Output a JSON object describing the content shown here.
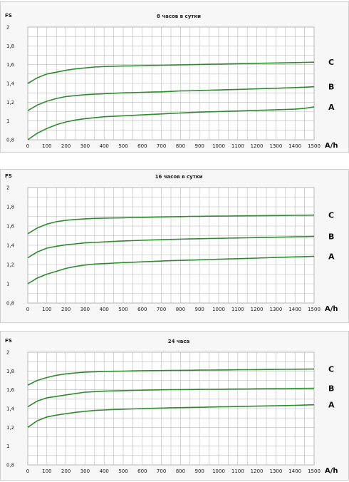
{
  "chart_data": [
    {
      "type": "line",
      "title": "8 часов в сутки",
      "ylabel": "FS",
      "xlabel": "A/h",
      "ylim": [
        0.8,
        2
      ],
      "yticks": [
        "0,8",
        "1",
        "1,2",
        "1,4",
        "1,6",
        "1,8",
        "2"
      ],
      "xticks": [
        "0",
        "100",
        "200",
        "300",
        "400",
        "500",
        "600",
        "700",
        "800",
        "900",
        "1000",
        "1100",
        "1200",
        "1300",
        "1400",
        "1500"
      ],
      "x": [
        0,
        50,
        100,
        150,
        200,
        250,
        300,
        350,
        400,
        450,
        500,
        550,
        600,
        650,
        700,
        750,
        800,
        850,
        900,
        950,
        1000,
        1050,
        1100,
        1150,
        1200,
        1250,
        1300,
        1350,
        1400,
        1450,
        1500
      ],
      "series": [
        {
          "name": "C",
          "values": [
            1.4,
            1.46,
            1.5,
            1.52,
            1.54,
            1.555,
            1.565,
            1.575,
            1.58,
            1.582,
            1.585,
            1.587,
            1.59,
            1.592,
            1.594,
            1.596,
            1.598,
            1.6,
            1.602,
            1.604,
            1.606,
            1.608,
            1.61,
            1.612,
            1.614,
            1.616,
            1.618,
            1.62,
            1.622,
            1.624,
            1.626
          ]
        },
        {
          "name": "B",
          "values": [
            1.11,
            1.17,
            1.21,
            1.24,
            1.26,
            1.27,
            1.28,
            1.285,
            1.29,
            1.295,
            1.3,
            1.302,
            1.305,
            1.308,
            1.31,
            1.315,
            1.32,
            1.322,
            1.325,
            1.328,
            1.33,
            1.333,
            1.336,
            1.339,
            1.342,
            1.345,
            1.348,
            1.352,
            1.356,
            1.36,
            1.364
          ]
        },
        {
          "name": "A",
          "values": [
            0.8,
            0.87,
            0.92,
            0.96,
            0.99,
            1.01,
            1.025,
            1.035,
            1.045,
            1.05,
            1.055,
            1.06,
            1.065,
            1.07,
            1.075,
            1.08,
            1.085,
            1.09,
            1.095,
            1.098,
            1.1,
            1.103,
            1.106,
            1.11,
            1.113,
            1.116,
            1.12,
            1.123,
            1.126,
            1.135,
            1.15
          ]
        }
      ],
      "grid": true,
      "colors": {
        "line": "#2e8b2e"
      }
    },
    {
      "type": "line",
      "title": "16 часов в сутки",
      "ylabel": "FS",
      "xlabel": "A/h",
      "ylim": [
        0.8,
        2
      ],
      "yticks": [
        "0,8",
        "1",
        "1,2",
        "1,4",
        "1,6",
        "1,8",
        "2"
      ],
      "xticks": [
        "0",
        "100",
        "200",
        "300",
        "400",
        "500",
        "600",
        "700",
        "800",
        "900",
        "1000",
        "1100",
        "1200",
        "1300",
        "1400",
        "1500"
      ],
      "x": [
        0,
        50,
        100,
        150,
        200,
        250,
        300,
        350,
        400,
        450,
        500,
        550,
        600,
        650,
        700,
        750,
        800,
        850,
        900,
        950,
        1000,
        1050,
        1100,
        1150,
        1200,
        1250,
        1300,
        1350,
        1400,
        1450,
        1500
      ],
      "series": [
        {
          "name": "C",
          "values": [
            1.52,
            1.58,
            1.62,
            1.645,
            1.66,
            1.668,
            1.675,
            1.679,
            1.682,
            1.684,
            1.686,
            1.688,
            1.69,
            1.692,
            1.694,
            1.696,
            1.698,
            1.7,
            1.701,
            1.702,
            1.703,
            1.704,
            1.705,
            1.706,
            1.707,
            1.708,
            1.709,
            1.71,
            1.711,
            1.712,
            1.713
          ]
        },
        {
          "name": "B",
          "values": [
            1.27,
            1.33,
            1.37,
            1.39,
            1.405,
            1.415,
            1.425,
            1.43,
            1.435,
            1.44,
            1.445,
            1.448,
            1.452,
            1.455,
            1.458,
            1.461,
            1.464,
            1.466,
            1.468,
            1.47,
            1.472,
            1.474,
            1.476,
            1.478,
            1.48,
            1.482,
            1.484,
            1.486,
            1.488,
            1.49,
            1.492
          ]
        },
        {
          "name": "A",
          "values": [
            1.0,
            1.06,
            1.1,
            1.13,
            1.16,
            1.18,
            1.195,
            1.205,
            1.21,
            1.215,
            1.22,
            1.224,
            1.228,
            1.232,
            1.236,
            1.24,
            1.243,
            1.246,
            1.249,
            1.252,
            1.255,
            1.258,
            1.261,
            1.264,
            1.267,
            1.27,
            1.273,
            1.276,
            1.279,
            1.282,
            1.285
          ]
        }
      ],
      "grid": true,
      "colors": {
        "line": "#2e8b2e"
      }
    },
    {
      "type": "line",
      "title": "24 часа",
      "ylabel": "FS",
      "xlabel": "A/h",
      "ylim": [
        0.8,
        2
      ],
      "yticks": [
        "0,8",
        "1",
        "1,2",
        "1,4",
        "1,6",
        "1,8",
        "2"
      ],
      "xticks": [
        "0",
        "100",
        "200",
        "300",
        "400",
        "500",
        "600",
        "700",
        "800",
        "900",
        "1000",
        "1100",
        "1200",
        "1300",
        "1400",
        "1500"
      ],
      "x": [
        0,
        50,
        100,
        150,
        200,
        250,
        300,
        350,
        400,
        450,
        500,
        550,
        600,
        650,
        700,
        750,
        800,
        850,
        900,
        950,
        1000,
        1050,
        1100,
        1150,
        1200,
        1250,
        1300,
        1350,
        1400,
        1450,
        1500
      ],
      "series": [
        {
          "name": "C",
          "values": [
            1.65,
            1.7,
            1.73,
            1.755,
            1.77,
            1.78,
            1.788,
            1.792,
            1.795,
            1.797,
            1.799,
            1.801,
            1.803,
            1.804,
            1.805,
            1.806,
            1.807,
            1.808,
            1.809,
            1.81,
            1.811,
            1.812,
            1.813,
            1.814,
            1.815,
            1.816,
            1.817,
            1.818,
            1.819,
            1.82,
            1.821
          ]
        },
        {
          "name": "B",
          "values": [
            1.42,
            1.48,
            1.515,
            1.53,
            1.545,
            1.56,
            1.575,
            1.58,
            1.585,
            1.588,
            1.591,
            1.594,
            1.596,
            1.598,
            1.6,
            1.601,
            1.602,
            1.603,
            1.604,
            1.605,
            1.606,
            1.607,
            1.608,
            1.609,
            1.61,
            1.611,
            1.612,
            1.613,
            1.614,
            1.615,
            1.616
          ]
        },
        {
          "name": "A",
          "values": [
            1.2,
            1.27,
            1.31,
            1.33,
            1.345,
            1.36,
            1.37,
            1.38,
            1.385,
            1.39,
            1.393,
            1.396,
            1.399,
            1.402,
            1.405,
            1.408,
            1.41,
            1.412,
            1.414,
            1.416,
            1.418,
            1.42,
            1.422,
            1.424,
            1.426,
            1.428,
            1.43,
            1.432,
            1.434,
            1.437,
            1.44
          ]
        }
      ],
      "grid": true,
      "colors": {
        "line": "#2e8b2e"
      }
    }
  ]
}
